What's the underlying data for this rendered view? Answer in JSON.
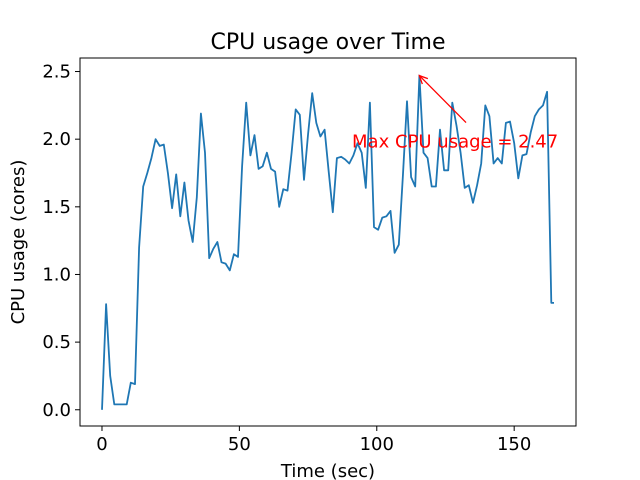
{
  "chart_data": {
    "type": "line",
    "title": "CPU usage over Time",
    "xlabel": "Time (sec)",
    "ylabel": "CPU usage (cores)",
    "xlim": [
      -8,
      172.5
    ],
    "ylim": [
      -0.12,
      2.6
    ],
    "xticks": [
      0,
      50,
      100,
      150
    ],
    "yticks": [
      0.0,
      0.5,
      1.0,
      1.5,
      2.0,
      2.5
    ],
    "xtick_labels": [
      "0",
      "50",
      "100",
      "150"
    ],
    "ytick_labels": [
      "0.0",
      "0.5",
      "1.0",
      "1.5",
      "2.0",
      "2.5"
    ],
    "grid": false,
    "legend": "none",
    "series": [
      {
        "color": "#1f77b4",
        "x": [
          0,
          1.5,
          3,
          4.5,
          6,
          7.5,
          9,
          10.5,
          12,
          13.5,
          15,
          16.5,
          18,
          19.5,
          21,
          22.5,
          24,
          25.5,
          27,
          28.5,
          30,
          31.5,
          33,
          34.5,
          36,
          37.5,
          39,
          40.5,
          42,
          43.5,
          45,
          46.5,
          48,
          49.5,
          51,
          52.5,
          54,
          55.5,
          57,
          58.5,
          60,
          61.5,
          63,
          64.5,
          66,
          67.5,
          69,
          70.5,
          72,
          73.5,
          75,
          76.5,
          78,
          79.5,
          81,
          82.5,
          84,
          85.5,
          87,
          88.5,
          90,
          91.5,
          93,
          94.5,
          96,
          97.5,
          99,
          100.5,
          102,
          103.5,
          105,
          106.5,
          108,
          109.5,
          111,
          112.5,
          114,
          115.5,
          117,
          118.5,
          120,
          121.5,
          123,
          124.5,
          126,
          127.5,
          129,
          130.5,
          132,
          133.5,
          135,
          136.5,
          138,
          139.5,
          141,
          142.5,
          144,
          145.5,
          147,
          148.5,
          150,
          151.5,
          153,
          154.5,
          156,
          157.5,
          159,
          160.5,
          162,
          163.5,
          164.5
        ],
        "y": [
          0.0,
          0.78,
          0.25,
          0.04,
          0.04,
          0.04,
          0.04,
          0.2,
          0.19,
          1.2,
          1.65,
          1.75,
          1.86,
          2.0,
          1.95,
          1.96,
          1.75,
          1.49,
          1.74,
          1.43,
          1.68,
          1.4,
          1.24,
          1.57,
          2.19,
          1.9,
          1.12,
          1.19,
          1.24,
          1.09,
          1.08,
          1.03,
          1.15,
          1.13,
          1.8,
          2.27,
          1.88,
          2.03,
          1.78,
          1.8,
          1.9,
          1.78,
          1.76,
          1.5,
          1.63,
          1.62,
          1.9,
          2.22,
          2.18,
          1.7,
          2.04,
          2.34,
          2.12,
          2.02,
          2.07,
          1.76,
          1.46,
          1.86,
          1.87,
          1.85,
          1.82,
          1.88,
          1.97,
          1.9,
          1.64,
          2.27,
          1.35,
          1.33,
          1.42,
          1.43,
          1.47,
          1.16,
          1.22,
          1.73,
          2.28,
          1.72,
          1.65,
          2.47,
          1.9,
          1.86,
          1.65,
          1.65,
          2.07,
          1.77,
          1.77,
          2.27,
          2.1,
          1.9,
          1.64,
          1.66,
          1.53,
          1.66,
          1.82,
          2.25,
          2.17,
          1.82,
          1.86,
          1.82,
          2.12,
          2.13,
          1.97,
          1.71,
          1.88,
          1.89,
          2.05,
          2.17,
          2.22,
          2.25,
          2.35,
          0.79,
          0.79
        ]
      }
    ],
    "annotation": {
      "text": "Max CPU usage = 2.47",
      "color": "#ff0000",
      "point": [
        115.5,
        2.47
      ],
      "text_anchor_point": [
        91,
        1.99
      ]
    }
  }
}
